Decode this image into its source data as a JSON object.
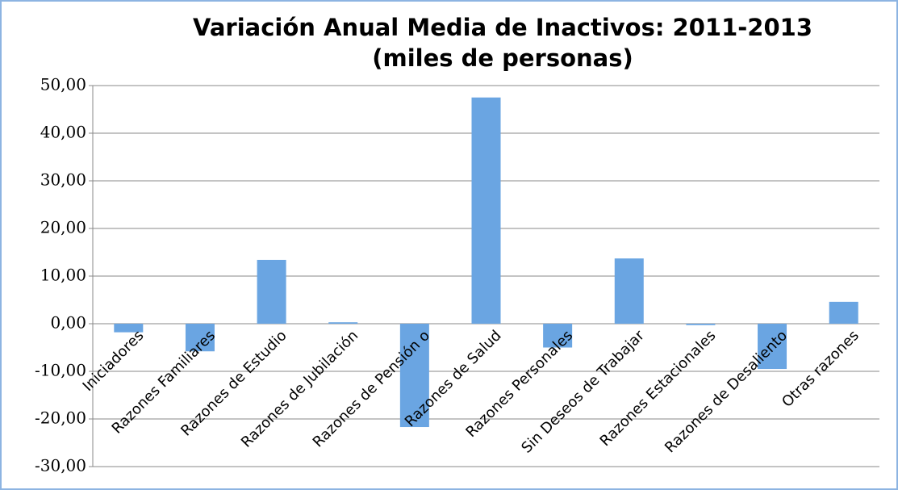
{
  "chart_data": {
    "type": "bar",
    "title": "Variación Anual Media de Inactivos: 2011-2013",
    "subtitle": "(miles de personas)",
    "categories": [
      "Iniciadores",
      "Razones Familiares",
      "Razones de Estudio",
      "Razones de Jubilación",
      "Razones de Pensión o",
      "Razones de Salud",
      "Razones Personales",
      "Sin Deseos de Trabajar",
      "Razones Estacionales",
      "Razones de Desaliento",
      "Otras razones"
    ],
    "values": [
      -1.8,
      -5.8,
      13.4,
      0.3,
      -21.7,
      47.5,
      -5.0,
      13.7,
      -0.3,
      -9.5,
      4.6
    ],
    "color": "#6aa5e2",
    "ylim": [
      -30,
      50
    ],
    "yticks": [
      {
        "value": -30,
        "label": "-30,00"
      },
      {
        "value": -20,
        "label": "-20,00"
      },
      {
        "value": -10,
        "label": "-10,00"
      },
      {
        "value": 0,
        "label": "0,00"
      },
      {
        "value": 10,
        "label": "10,00"
      },
      {
        "value": 20,
        "label": "20,00"
      },
      {
        "value": 30,
        "label": "30,00"
      },
      {
        "value": 40,
        "label": "40,00"
      },
      {
        "value": 50,
        "label": "50,00"
      }
    ],
    "grid": true
  }
}
